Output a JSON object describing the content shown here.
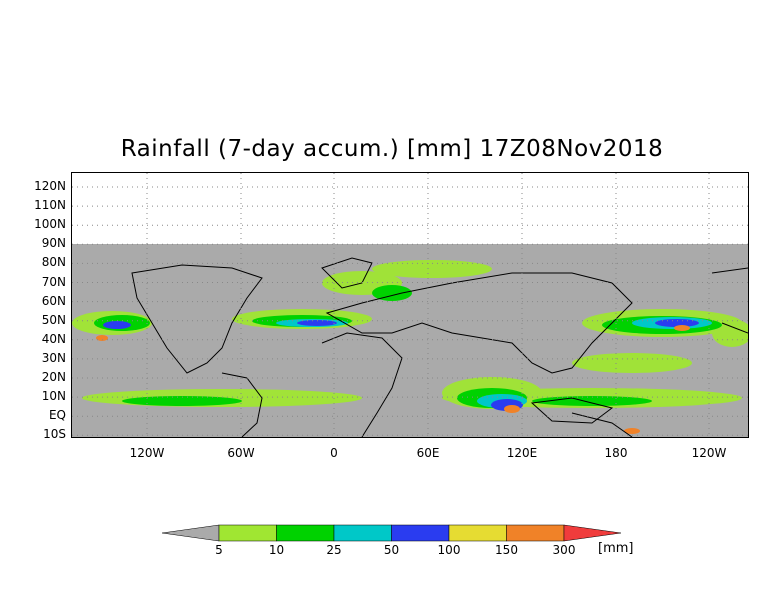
{
  "title": "Rainfall (7-day accum.) [mm] 17Z08Nov2018",
  "lat_labels": [
    "120N",
    "110N",
    "100N",
    "90N",
    "80N",
    "70N",
    "60N",
    "50N",
    "40N",
    "30N",
    "20N",
    "10N",
    "EQ",
    "10S"
  ],
  "lon_labels": [
    "120W",
    "60W",
    "0",
    "60E",
    "120E",
    "180",
    "120W"
  ],
  "colorbar": {
    "levels": [
      "5",
      "10",
      "25",
      "50",
      "100",
      "150",
      "300"
    ],
    "colors": [
      "#aaaaaa",
      "#a0e632",
      "#00d200",
      "#00c8c8",
      "#2a3cf0",
      "#e6dc32",
      "#f08228",
      "#f03c3c"
    ],
    "unit": "[mm]"
  },
  "map_colors": {
    "no_data": "#ffffff",
    "background": "#aaaaaa",
    "coast": "#000000"
  }
}
